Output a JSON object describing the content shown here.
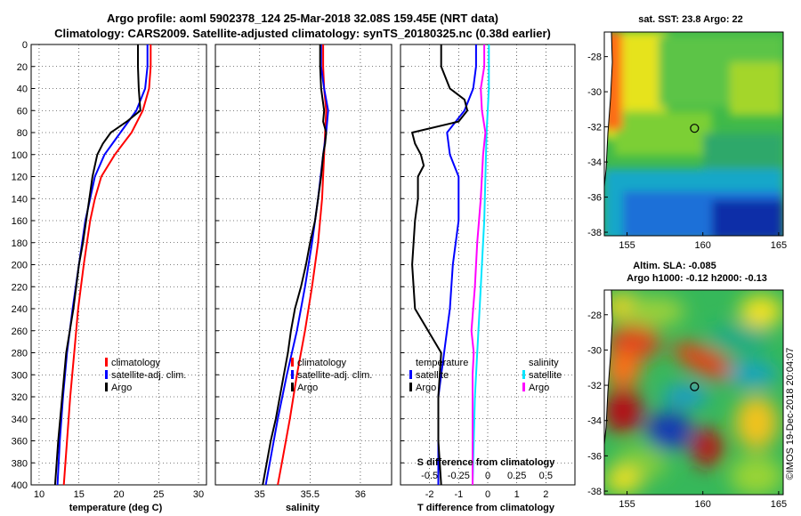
{
  "title_line1": "Argo profile: aoml 5902378_124 25-Mar-2018 32.08S 159.45E (NRT data)",
  "title_line2": "Climatology: CARS2009. Satellite-adjusted climatology: synTS_20180325.nc (0.38d earlier)",
  "depth_ticks": [
    0,
    20,
    40,
    60,
    80,
    100,
    120,
    140,
    160,
    180,
    200,
    220,
    240,
    260,
    280,
    300,
    320,
    340,
    360,
    380,
    400
  ],
  "colors": {
    "climatology": "#ff0000",
    "satellite": "#0000ff",
    "argo": "#000000",
    "sat_sal": "#00e5ff",
    "argo_sal": "#ff00ff"
  },
  "chart_data": [
    {
      "type": "line",
      "panel": "temperature",
      "xlabel": "temperature (deg C)",
      "ylabel": "depth",
      "xlim": [
        9,
        31
      ],
      "ylim": [
        0,
        400
      ],
      "xticks": [
        10,
        15,
        20,
        25,
        30
      ],
      "legend": [
        "climatology",
        "satellite-adj. clim.",
        "Argo"
      ],
      "legend_position": "lower-right",
      "series": [
        {
          "name": "climatology",
          "depth": [
            0,
            20,
            40,
            60,
            80,
            100,
            120,
            140,
            160,
            200,
            240,
            280,
            320,
            360,
            400
          ],
          "values": [
            24.0,
            24.0,
            23.8,
            23.0,
            21.6,
            19.5,
            17.8,
            17.0,
            16.4,
            15.6,
            14.9,
            14.4,
            13.9,
            13.5,
            13.1
          ]
        },
        {
          "name": "satellite-adj. clim.",
          "depth": [
            0,
            20,
            40,
            60,
            80,
            100,
            120,
            140,
            160,
            200,
            240,
            280,
            320,
            360,
            400
          ],
          "values": [
            23.6,
            23.6,
            23.3,
            22.2,
            20.2,
            18.2,
            17.0,
            16.4,
            15.8,
            15.0,
            14.2,
            13.5,
            13.0,
            12.6,
            12.3
          ]
        },
        {
          "name": "Argo",
          "depth": [
            0,
            20,
            40,
            60,
            70,
            80,
            90,
            100,
            110,
            120,
            140,
            160,
            180,
            200,
            240,
            280,
            320,
            360,
            400
          ],
          "values": [
            22.4,
            22.4,
            22.5,
            22.7,
            21.0,
            19.0,
            18.0,
            17.3,
            17.0,
            16.7,
            16.3,
            15.9,
            15.5,
            15.0,
            14.3,
            13.4,
            12.9,
            12.4,
            12.0
          ]
        }
      ]
    },
    {
      "type": "line",
      "panel": "salinity",
      "xlabel": "salinity",
      "ylabel": "depth",
      "xlim": [
        34.56,
        36.31
      ],
      "ylim": [
        0,
        400
      ],
      "xticks": [
        35,
        35.5,
        36
      ],
      "xtick_labels": [
        "35",
        "35.5",
        "36"
      ],
      "legend": [
        "climatology",
        "satellite-adj. clim.",
        "Argo"
      ],
      "legend_position": "lower-right",
      "series": [
        {
          "name": "climatology",
          "depth": [
            0,
            20,
            40,
            60,
            80,
            100,
            140,
            180,
            220,
            260,
            300,
            340,
            380,
            400
          ],
          "values": [
            35.63,
            35.63,
            35.64,
            35.66,
            35.65,
            35.64,
            35.62,
            35.58,
            35.52,
            35.45,
            35.37,
            35.3,
            35.22,
            35.18
          ]
        },
        {
          "name": "satellite-adj. clim.",
          "depth": [
            0,
            20,
            40,
            60,
            80,
            100,
            140,
            180,
            220,
            260,
            300,
            340,
            380,
            400
          ],
          "values": [
            35.61,
            35.61,
            35.64,
            35.68,
            35.66,
            35.63,
            35.58,
            35.52,
            35.45,
            35.37,
            35.27,
            35.18,
            35.1,
            35.06
          ]
        },
        {
          "name": "Argo",
          "depth": [
            0,
            20,
            40,
            60,
            70,
            80,
            90,
            100,
            120,
            140,
            160,
            180,
            200,
            220,
            240,
            260,
            280,
            300,
            320,
            340,
            360,
            380,
            400
          ],
          "values": [
            35.6,
            35.6,
            35.61,
            35.64,
            35.63,
            35.66,
            35.65,
            35.63,
            35.61,
            35.58,
            35.55,
            35.5,
            35.46,
            35.41,
            35.35,
            35.31,
            35.28,
            35.24,
            35.2,
            35.16,
            35.11,
            35.07,
            35.03
          ]
        }
      ]
    },
    {
      "type": "line",
      "panel": "difference",
      "xlabel": "T difference from climatology",
      "xlabel_top": "S difference from climatology",
      "ylabel": "depth",
      "xlim": [
        -3,
        3
      ],
      "ylim": [
        0,
        400
      ],
      "xticks": [
        -2,
        -1,
        0,
        1,
        2
      ],
      "xticks_top": [
        -0.5,
        -0.25,
        0,
        0.25,
        0.5
      ],
      "xtick_labels_top": [
        "-0.5",
        "-0.25",
        "0",
        "0.25",
        "0.5"
      ],
      "legend_left_title": "temperature",
      "legend_right_title": "salinity",
      "legend": [
        "satellite",
        "Argo"
      ],
      "series": [
        {
          "name": "T satellite",
          "depth": [
            0,
            20,
            40,
            60,
            80,
            100,
            120,
            160,
            200,
            240,
            280,
            320,
            360,
            400
          ],
          "values": [
            -0.4,
            -0.4,
            -0.5,
            -0.8,
            -1.4,
            -1.3,
            -1.0,
            -1.0,
            -1.2,
            -1.3,
            -1.5,
            -1.7,
            -1.7,
            -1.7
          ]
        },
        {
          "name": "T Argo",
          "depth": [
            0,
            20,
            40,
            50,
            60,
            70,
            80,
            90,
            100,
            110,
            120,
            140,
            160,
            200,
            240,
            280,
            320,
            360,
            400
          ],
          "values": [
            -1.6,
            -1.6,
            -1.3,
            -0.8,
            -0.7,
            -1.0,
            -2.6,
            -2.5,
            -2.3,
            -2.2,
            -2.4,
            -2.4,
            -2.5,
            -2.6,
            -2.5,
            -1.6,
            -1.7,
            -1.7,
            -1.6
          ]
        },
        {
          "name": "S satellite",
          "depth": [
            0,
            40,
            80,
            120,
            160,
            200,
            240,
            280,
            320,
            360,
            400
          ],
          "values": [
            0.01,
            0.01,
            -0.01,
            -0.02,
            -0.03,
            -0.05,
            -0.07,
            -0.09,
            -0.11,
            -0.12,
            -0.13
          ]
        },
        {
          "name": "S Argo",
          "depth": [
            0,
            20,
            40,
            60,
            80,
            100,
            140,
            180,
            220,
            260,
            280,
            300,
            320,
            360,
            400
          ],
          "values": [
            -0.03,
            -0.03,
            -0.06,
            -0.05,
            -0.02,
            -0.04,
            -0.06,
            -0.09,
            -0.11,
            -0.14,
            -0.12,
            -0.13,
            -0.13,
            -0.13,
            -0.13
          ]
        }
      ]
    },
    {
      "type": "heatmap",
      "panel": "sat_sst_map",
      "title": "sat. SST: 23.8 Argo: 22",
      "xticks": [
        155,
        160,
        165
      ],
      "yticks": [
        -28,
        -30,
        -32,
        -34,
        -36,
        -38
      ],
      "xlim": [
        153.5,
        165.3
      ],
      "ylim": [
        -38.2,
        -26.6
      ],
      "argo_position": [
        159.45,
        -32.08
      ]
    },
    {
      "type": "heatmap",
      "panel": "altimetry_map",
      "title_line1": "Altim. SLA: -0.085",
      "title_line2": "Argo h1000: -0.12 h2000: -0.13",
      "xticks": [
        155,
        160,
        165
      ],
      "yticks": [
        -28,
        -30,
        -32,
        -34,
        -36,
        -38
      ],
      "xlim": [
        153.5,
        165.3
      ],
      "ylim": [
        -38.2,
        -26.6
      ],
      "argo_position": [
        159.45,
        -32.08
      ]
    }
  ],
  "credit": "©IMOS 19-Dec-2018 20:04:07"
}
